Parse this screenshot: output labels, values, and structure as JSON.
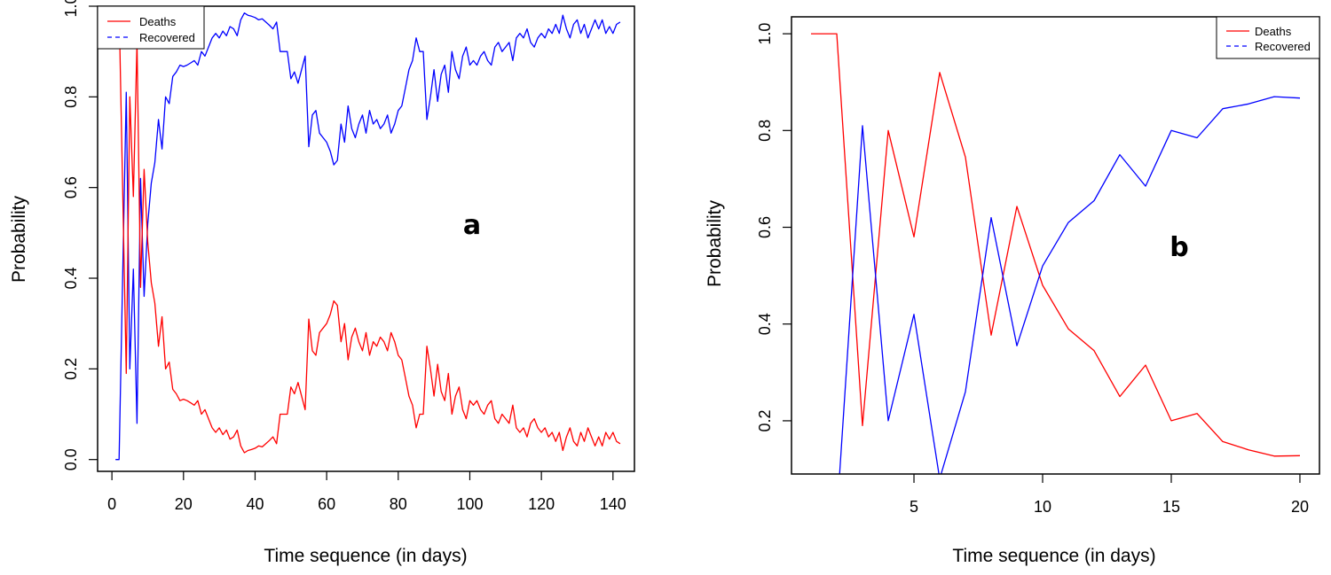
{
  "chart_data": [
    {
      "panel": "a",
      "type": "line",
      "title": "",
      "annotation": "a",
      "xlabel": "Time sequence (in days)",
      "ylabel": "Probability",
      "xlim": [
        -4,
        146
      ],
      "ylim": [
        -0.026,
        1.0
      ],
      "xticks": [
        0,
        20,
        40,
        60,
        80,
        100,
        120,
        140
      ],
      "xtick_labels": [
        "0",
        "20",
        "40",
        "60",
        "80",
        "100",
        "120",
        "140"
      ],
      "yticks": [
        0.0,
        0.2,
        0.4,
        0.6,
        0.8,
        1.0
      ],
      "ytick_labels": [
        "0.0",
        "0.2",
        "0.4",
        "0.6",
        "0.8",
        "1.0"
      ],
      "grid": false,
      "legend": {
        "placement": "top-left",
        "entries": [
          "Deaths",
          "Recovered"
        ]
      },
      "x_start": 1,
      "series": [
        {
          "name": "Recovered",
          "color": "#0000FF",
          "dash": "solid",
          "values": [
            0,
            0,
            0.4,
            0.81,
            0.2,
            0.42,
            0.08,
            0.62,
            0.36,
            0.52,
            0.61,
            0.655,
            0.75,
            0.685,
            0.8,
            0.785,
            0.845,
            0.855,
            0.87,
            0.867,
            0.87,
            0.875,
            0.88,
            0.87,
            0.9,
            0.89,
            0.91,
            0.93,
            0.94,
            0.93,
            0.945,
            0.935,
            0.955,
            0.95,
            0.935,
            0.97,
            0.985,
            0.98,
            0.978,
            0.975,
            0.97,
            0.972,
            0.965,
            0.958,
            0.95,
            0.965,
            0.9,
            0.9,
            0.9,
            0.84,
            0.855,
            0.83,
            0.86,
            0.89,
            0.69,
            0.76,
            0.77,
            0.72,
            0.71,
            0.7,
            0.68,
            0.65,
            0.66,
            0.74,
            0.7,
            0.78,
            0.73,
            0.71,
            0.74,
            0.76,
            0.72,
            0.77,
            0.74,
            0.75,
            0.73,
            0.74,
            0.76,
            0.72,
            0.74,
            0.77,
            0.78,
            0.82,
            0.86,
            0.88,
            0.93,
            0.9,
            0.9,
            0.75,
            0.8,
            0.86,
            0.79,
            0.85,
            0.87,
            0.81,
            0.9,
            0.86,
            0.84,
            0.89,
            0.91,
            0.87,
            0.88,
            0.87,
            0.89,
            0.9,
            0.88,
            0.87,
            0.91,
            0.92,
            0.9,
            0.91,
            0.92,
            0.88,
            0.93,
            0.94,
            0.93,
            0.95,
            0.92,
            0.91,
            0.93,
            0.94,
            0.93,
            0.95,
            0.94,
            0.96,
            0.94,
            0.98,
            0.95,
            0.93,
            0.96,
            0.97,
            0.94,
            0.96,
            0.93,
            0.95,
            0.97,
            0.95,
            0.97,
            0.94,
            0.955,
            0.94,
            0.96,
            0.965
          ]
        },
        {
          "name": "Deaths",
          "color": "#FF0000",
          "dash": "solid",
          "values_rule": "1 - Recovered"
        }
      ]
    },
    {
      "panel": "b",
      "type": "line",
      "title": "",
      "annotation": "b",
      "xlabel": "Time sequence (in days)",
      "ylabel": "Probability",
      "xlim": [
        0.24,
        20.76
      ],
      "ylim": [
        0.09,
        1.035
      ],
      "xticks": [
        5,
        10,
        15,
        20
      ],
      "xtick_labels": [
        "5",
        "10",
        "15",
        "20"
      ],
      "yticks": [
        0.2,
        0.4,
        0.6,
        0.8,
        1.0
      ],
      "ytick_labels": [
        "0.2",
        "0.4",
        "0.6",
        "0.8",
        "1.0"
      ],
      "grid": false,
      "legend": {
        "placement": "top-right",
        "entries": [
          "Deaths",
          "Recovered"
        ]
      },
      "x": [
        1,
        2,
        3,
        4,
        5,
        6,
        7,
        8,
        9,
        10,
        11,
        12,
        13,
        14,
        15,
        16,
        17,
        18,
        19,
        20
      ],
      "series": [
        {
          "name": "Deaths",
          "color": "#FF0000",
          "dash": "solid",
          "values": [
            1.0,
            1.0,
            0.19,
            0.8,
            0.58,
            0.92,
            0.745,
            0.377,
            0.643,
            0.48,
            0.39,
            0.345,
            0.25,
            0.315,
            0.2,
            0.215,
            0.157,
            0.14,
            0.127,
            0.128
          ]
        },
        {
          "name": "Recovered",
          "color": "#0000FF",
          "dash": "solid",
          "values": [
            0.0,
            0.0,
            0.81,
            0.2,
            0.42,
            0.08,
            0.26,
            0.62,
            0.355,
            0.52,
            0.61,
            0.655,
            0.75,
            0.685,
            0.8,
            0.785,
            0.845,
            0.855,
            0.87,
            0.867
          ]
        }
      ]
    }
  ]
}
